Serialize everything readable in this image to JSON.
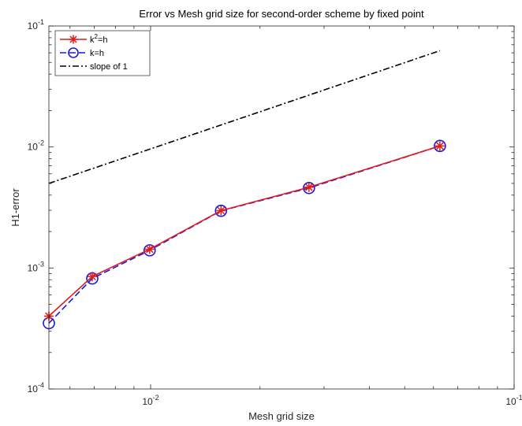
{
  "chart_data": {
    "type": "line",
    "title": "Error vs Mesh grid size for second-order scheme by fixed point",
    "xlabel": "Mesh grid size",
    "ylabel": "H1-error",
    "xscale": "log",
    "yscale": "log",
    "xlim": [
      0.00525,
      0.1
    ],
    "ylim": [
      0.0001,
      0.1
    ],
    "grid": false,
    "legend_position": "top-left",
    "x_ticks": [
      {
        "value": 0.01,
        "base": "10",
        "exp": "-2"
      },
      {
        "value": 0.1,
        "base": "10",
        "exp": "-1"
      }
    ],
    "y_ticks": [
      {
        "value": 0.0001,
        "base": "10",
        "exp": "-4"
      },
      {
        "value": 0.001,
        "base": "10",
        "exp": "-3"
      },
      {
        "value": 0.01,
        "base": "10",
        "exp": "-2"
      },
      {
        "value": 0.1,
        "base": "10",
        "exp": "-1"
      }
    ],
    "series": [
      {
        "legend_base": "k",
        "legend_sup": "2",
        "legend_rest": "=h",
        "color": "#e41a1c",
        "line": "solid",
        "marker": "asterisk",
        "x": [
          0.00525,
          0.00691,
          0.00994,
          0.01562,
          0.02727,
          0.0625
        ],
        "y": [
          0.0004,
          0.00085,
          0.00143,
          0.00298,
          0.00465,
          0.0102
        ]
      },
      {
        "legend_base": "k=h",
        "legend_sup": "",
        "legend_rest": "",
        "color": "#1a1adb",
        "line": "dashed",
        "marker": "circle",
        "x": [
          0.00525,
          0.00691,
          0.00994,
          0.01562,
          0.02727,
          0.0625
        ],
        "y": [
          0.00035,
          0.00082,
          0.0014,
          0.00297,
          0.00458,
          0.0102
        ]
      },
      {
        "legend_base": "slope of 1",
        "legend_sup": "",
        "legend_rest": "",
        "color": "#000000",
        "line": "dashdot",
        "marker": "none",
        "x": [
          0.00525,
          0.0625
        ],
        "y": [
          0.005,
          0.0625
        ]
      }
    ]
  }
}
